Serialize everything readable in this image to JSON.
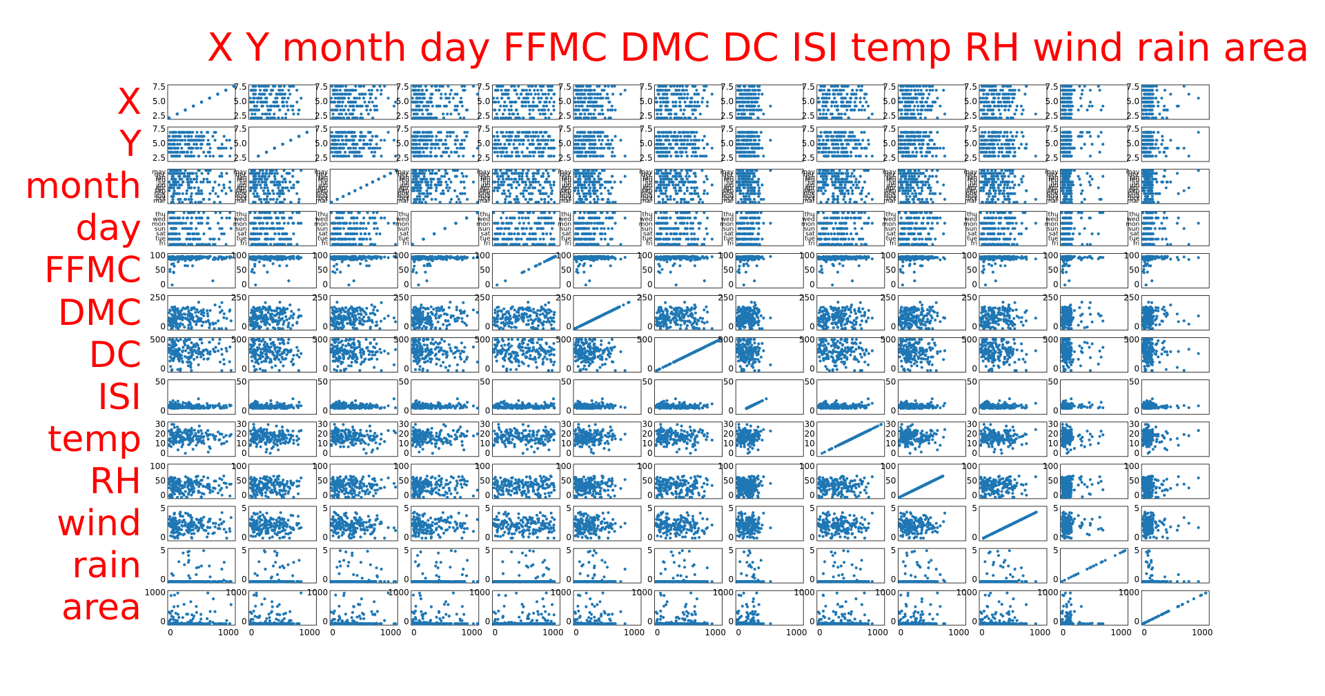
{
  "title": "X Y month day FFMC DMC DC ISI temp RH wind rain area",
  "colors": {
    "title": "#ff0000",
    "points": "#1f77b4",
    "axes": "#000000"
  },
  "chart_data": {
    "type": "scatter",
    "layout": "scatter-matrix",
    "variables": [
      "X",
      "Y",
      "month",
      "day",
      "FFMC",
      "DMC",
      "DC",
      "ISI",
      "temp",
      "RH",
      "wind",
      "rain",
      "area"
    ],
    "point_x_range": [
      0,
      1100
    ],
    "y_axis": {
      "X": {
        "ylim": [
          1,
          9
        ],
        "ticks": [
          "2.5",
          "5.0",
          "7.5"
        ]
      },
      "Y": {
        "ylim": [
          1,
          9
        ],
        "ticks": [
          "2.5",
          "5.0",
          "7.5"
        ]
      },
      "month": {
        "ylim": [
          0,
          11
        ],
        "ticks": [
          "mar",
          "oct",
          "aug",
          "nov",
          "sep",
          "apr",
          "jun",
          "jul",
          "feb",
          "jan",
          "dec",
          "may"
        ]
      },
      "day": {
        "ylim": [
          0,
          6
        ],
        "ticks": [
          "fri",
          "tue",
          "sat",
          "sun",
          "mon",
          "wed",
          "thu"
        ]
      },
      "FFMC": {
        "ylim": [
          18,
          100
        ],
        "ticks": [
          "0",
          "50",
          "100"
        ]
      },
      "DMC": {
        "ylim": [
          0,
          300
        ],
        "ticks": [
          "0",
          "250"
        ]
      },
      "DC": {
        "ylim": [
          0,
          870
        ],
        "ticks": [
          "0",
          "500"
        ]
      },
      "ISI": {
        "ylim": [
          0,
          57
        ],
        "ticks": [
          "0",
          "50"
        ]
      },
      "temp": {
        "ylim": [
          0,
          34
        ],
        "ticks": [
          "0",
          "10",
          "20",
          "30"
        ]
      },
      "RH": {
        "ylim": [
          15,
          100
        ],
        "ticks": [
          "0",
          "50",
          "100"
        ]
      },
      "wind": {
        "ylim": [
          0,
          9.5
        ],
        "ticks": [
          "0",
          "5"
        ]
      },
      "rain": {
        "ylim": [
          0,
          6.5
        ],
        "ticks": [
          "0",
          "5"
        ]
      },
      "area": {
        "ylim": [
          0,
          1100
        ],
        "ticks": [
          "0",
          "1000"
        ]
      }
    },
    "x_tick_labels": [
      "0",
      "1000"
    ],
    "legend": "none",
    "grid": false
  }
}
